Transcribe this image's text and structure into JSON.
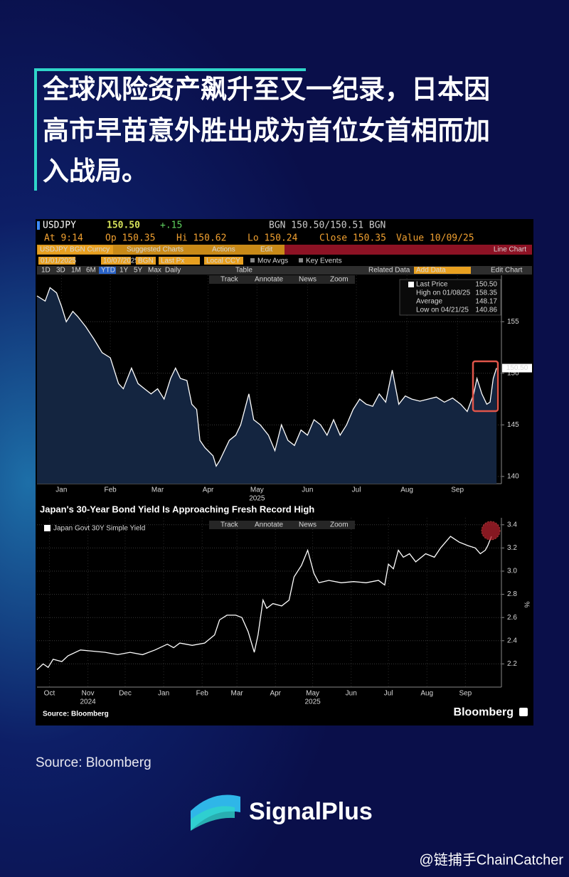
{
  "headline_lines": [
    "全球风险资产飙升至又一纪录，日本因",
    "高市早苗意外胜出成为首位女首相而加",
    "入战局。"
  ],
  "terminal": {
    "ticker": "USDJPY",
    "price": "150.50",
    "change": "+.15",
    "quote": "BGN 150.50/150.51 BGN",
    "stats": [
      "At 9:14",
      "Op 150.35",
      "Hi 150.62",
      "Lo 150.24",
      "Close 150.35",
      "Value 10/09/25"
    ],
    "menu": [
      "USDJPY BGN Curncy",
      "Suggested Charts",
      "Actions",
      "Edit"
    ],
    "chart_type": "Line Chart",
    "inputs": [
      "01/01/2025",
      "10/07/2025",
      "BGN",
      "Last Px",
      "Local CCY",
      "Mov Avgs",
      "Key Events"
    ],
    "periods": [
      "1D",
      "3D",
      "1M",
      "6M",
      "YTD",
      "1Y",
      "5Y",
      "Max",
      "Daily",
      "Table"
    ],
    "right_tools": [
      "Related Data",
      "Add Data",
      "Edit Chart"
    ],
    "chart_tools": [
      "Track",
      "Annotate",
      "News",
      "Zoom"
    ]
  },
  "chart_data": [
    {
      "type": "line",
      "color": "#ffffff",
      "area_color": "#142540",
      "x": [
        0,
        5,
        8,
        12,
        15,
        18,
        22,
        25,
        30,
        35,
        40,
        45,
        50,
        53,
        58,
        62,
        66,
        70,
        74,
        78,
        82,
        85,
        88,
        92,
        95,
        98,
        100,
        103,
        108,
        110,
        112,
        118,
        122,
        125,
        130,
        133,
        137,
        142,
        146,
        150,
        154,
        158,
        162,
        166,
        170,
        174,
        178,
        182,
        186,
        190,
        194,
        198,
        202,
        206,
        210,
        214,
        218,
        222,
        226,
        230,
        235,
        240,
        245,
        250,
        255,
        260,
        264,
        268,
        270,
        273,
        276,
        278,
        280,
        282
      ],
      "values": [
        157.5,
        157.0,
        158.3,
        157.8,
        156.5,
        155.0,
        156.0,
        155.5,
        154.5,
        153.3,
        152.0,
        151.5,
        149.0,
        148.5,
        150.5,
        149.0,
        148.5,
        148.0,
        148.5,
        147.5,
        149.5,
        150.5,
        149.5,
        149.3,
        147.0,
        146.5,
        143.5,
        142.8,
        142.0,
        141.0,
        141.5,
        143.5,
        144.0,
        145.0,
        148.0,
        145.5,
        145.0,
        144.0,
        142.5,
        145.0,
        143.5,
        143.0,
        144.5,
        144.0,
        145.5,
        145.0,
        144.0,
        145.5,
        144.0,
        145.0,
        146.5,
        147.5,
        147.0,
        146.8,
        148.0,
        147.2,
        150.3,
        147.0,
        147.8,
        147.5,
        147.3,
        147.5,
        147.7,
        147.2,
        147.6,
        147.0,
        146.3,
        148.0,
        149.5,
        148.0,
        147.0,
        147.2,
        149.5,
        150.5
      ],
      "last_label": "150.50",
      "xlim": [
        0,
        285
      ],
      "ylim": [
        139.3,
        159.5
      ],
      "yticks": [
        140,
        145,
        150,
        155
      ],
      "xticks": [
        {
          "value": 15,
          "label": "Jan"
        },
        {
          "value": 45,
          "label": "Feb"
        },
        {
          "value": 74,
          "label": "Mar"
        },
        {
          "value": 105,
          "label": "Apr"
        },
        {
          "value": 135,
          "label": "May"
        },
        {
          "value": 166,
          "label": "Jun"
        },
        {
          "value": 196,
          "label": "Jul"
        },
        {
          "value": 227,
          "label": "Aug"
        },
        {
          "value": 258,
          "label": "Sep"
        }
      ],
      "year_labels": [
        {
          "value": 135,
          "label": "2025"
        }
      ],
      "grid": true,
      "legend": [
        {
          "label": "Last Price",
          "value": "150.50"
        },
        {
          "label": "High on 01/08/25",
          "value": "158.35"
        },
        {
          "label": "Average",
          "value": "148.17"
        },
        {
          "label": "Low on 04/21/25",
          "value": "140.86"
        }
      ]
    },
    {
      "type": "line",
      "title": "Japan's 30-Year Bond Yield Is Approaching Fresh Record High",
      "series": [
        {
          "name": "Japan Govt 30Y Simple Yield",
          "color": "#ffffff",
          "values": [
            2.15,
            2.2,
            2.17,
            2.24,
            2.22,
            2.27,
            2.32,
            2.31,
            2.3,
            2.28,
            2.3,
            2.28,
            2.32,
            2.37,
            2.34,
            2.38,
            2.36,
            2.38,
            2.45,
            2.58,
            2.62,
            2.62,
            2.6,
            2.48,
            2.3,
            2.45,
            2.75,
            2.68,
            2.72,
            2.7,
            2.75,
            2.95,
            3.05,
            3.18,
            2.98,
            2.9,
            2.92,
            2.9,
            2.91,
            2.9,
            2.92,
            2.88,
            3.06,
            3.02,
            3.18,
            3.12,
            3.15,
            3.08,
            3.15,
            3.12,
            3.2,
            3.3,
            3.25,
            3.22,
            3.2,
            3.15,
            3.18,
            3.22,
            3.3
          ]
        }
      ],
      "x": [
        5,
        10,
        14,
        18,
        25,
        30,
        40,
        50,
        60,
        70,
        80,
        90,
        100,
        110,
        115,
        120,
        130,
        140,
        148,
        152,
        158,
        165,
        170,
        175,
        180,
        183,
        187,
        190,
        195,
        202,
        208,
        212,
        218,
        223,
        228,
        232,
        240,
        250,
        260,
        270,
        280,
        285,
        288,
        292,
        296,
        300,
        305,
        310,
        318,
        325,
        330,
        338,
        345,
        352,
        358,
        362,
        366,
        368,
        371
      ],
      "xlim": [
        5,
        379
      ],
      "ylim": [
        2.0,
        3.46
      ],
      "yticks": [
        2.2,
        2.4,
        2.6,
        2.8,
        {
          "value": 3,
          "label": "3.0"
        },
        3.2,
        3.4
      ],
      "y_label": "%",
      "xticks": [
        {
          "value": 15,
          "label": "Oct"
        },
        {
          "value": 46,
          "label": "Nov"
        },
        {
          "value": 76,
          "label": "Dec"
        },
        {
          "value": 107,
          "label": "Jan"
        },
        {
          "value": 138,
          "label": "Feb"
        },
        {
          "value": 166,
          "label": "Mar"
        },
        {
          "value": 197,
          "label": "Apr"
        },
        {
          "value": 227,
          "label": "May"
        },
        {
          "value": 258,
          "label": "Jun"
        },
        {
          "value": 288,
          "label": "Jul"
        },
        {
          "value": 319,
          "label": "Aug"
        },
        {
          "value": 350,
          "label": "Sep"
        }
      ],
      "year_labels": [
        {
          "value": 46,
          "label": "2024"
        },
        {
          "value": 227,
          "label": "2025"
        }
      ],
      "grid": true
    }
  ],
  "chart_footer": {
    "source": "Source: Bloomberg",
    "brand": "Bloomberg"
  },
  "source": "Source: Bloomberg",
  "logo": "SignalPlus",
  "watermark": "@链捕手ChainCatcher"
}
